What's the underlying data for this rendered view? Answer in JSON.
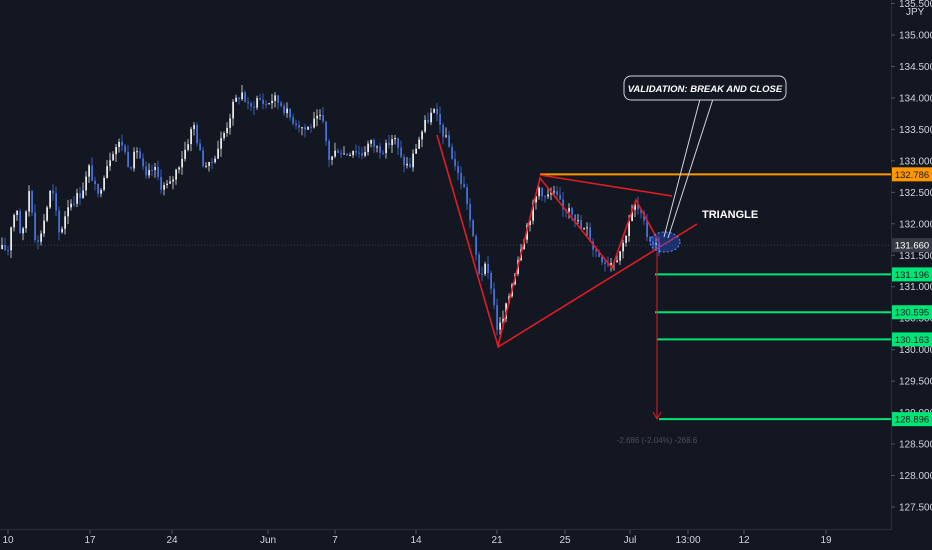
{
  "chart_data": {
    "type": "candlestick",
    "instrument_currency": "JPY",
    "y_axis": {
      "min": 127.25,
      "max": 135.5,
      "ticks": [
        "135.500",
        "135.000",
        "134.500",
        "134.000",
        "133.500",
        "133.000",
        "132.500",
        "132.000",
        "131.500",
        "131.000",
        "130.500",
        "130.000",
        "129.500",
        "129.000",
        "128.500",
        "128.000",
        "127.500"
      ]
    },
    "x_axis": {
      "ticks": [
        "10",
        "17",
        "24",
        "Jun",
        "7",
        "14",
        "21",
        "25",
        "Jul",
        "13:00",
        "12",
        "19"
      ]
    },
    "price_labels": [
      {
        "name": "resistance",
        "value": 132.786,
        "text": "132.786",
        "color": "#ff9800"
      },
      {
        "name": "current",
        "value": 131.66,
        "text": "131.660",
        "color": "#363a45"
      },
      {
        "name": "target-1",
        "value": 131.196,
        "text": "131.196",
        "color": "#00e676"
      },
      {
        "name": "target-2",
        "value": 130.595,
        "text": "130.595",
        "color": "#00e676"
      },
      {
        "name": "target-3",
        "value": 130.163,
        "text": "130.163",
        "color": "#00e676"
      },
      {
        "name": "target-4",
        "value": 128.896,
        "text": "128.896",
        "color": "#00e676"
      }
    ],
    "annotations": {
      "callout": "VALIDATION: BREAK AND CLOSE",
      "pattern_label": "TRIANGLE",
      "measure_label": "-2.686 (-2.04%) -268.6"
    },
    "colors": {
      "background": "#131722",
      "candle_up": "#ffffff",
      "candle_down": "#4c7cf3",
      "drawing": "#e31b23",
      "level_orange": "#ff9800",
      "level_green": "#00e676"
    },
    "price_path": [
      [
        10,
        131.9
      ],
      [
        17,
        132.3
      ],
      [
        22,
        131.7
      ],
      [
        30,
        132.6
      ],
      [
        37,
        131.6
      ],
      [
        45,
        132.1
      ],
      [
        52,
        132.6
      ],
      [
        60,
        131.8
      ],
      [
        68,
        132.3
      ],
      [
        75,
        132.4
      ],
      [
        82,
        132.5
      ],
      [
        90,
        132.9
      ],
      [
        98,
        132.4
      ],
      [
        106,
        132.9
      ],
      [
        114,
        133.2
      ],
      [
        122,
        133.3
      ],
      [
        130,
        132.9
      ],
      [
        138,
        133.2
      ],
      [
        146,
        132.7
      ],
      [
        154,
        132.9
      ],
      [
        162,
        132.6
      ],
      [
        170,
        132.6
      ],
      [
        178,
        132.9
      ],
      [
        186,
        133.2
      ],
      [
        194,
        133.6
      ],
      [
        202,
        133.0
      ],
      [
        210,
        132.9
      ],
      [
        218,
        133.2
      ],
      [
        226,
        133.5
      ],
      [
        234,
        133.9
      ],
      [
        242,
        134.1
      ],
      [
        250,
        133.8
      ],
      [
        258,
        134.0
      ],
      [
        266,
        133.9
      ],
      [
        274,
        134.0
      ],
      [
        282,
        133.9
      ],
      [
        290,
        133.7
      ],
      [
        298,
        133.6
      ],
      [
        306,
        133.5
      ],
      [
        314,
        133.6
      ],
      [
        322,
        133.7
      ],
      [
        330,
        133.0
      ],
      [
        338,
        133.2
      ],
      [
        346,
        133.1
      ],
      [
        354,
        133.2
      ],
      [
        362,
        133.1
      ],
      [
        370,
        133.3
      ],
      [
        378,
        133.2
      ],
      [
        386,
        133.2
      ],
      [
        394,
        133.4
      ],
      [
        402,
        133.0
      ],
      [
        410,
        132.9
      ],
      [
        418,
        133.3
      ],
      [
        426,
        133.6
      ],
      [
        434,
        133.8
      ],
      [
        442,
        133.5
      ],
      [
        450,
        133.2
      ],
      [
        458,
        132.8
      ],
      [
        466,
        132.5
      ],
      [
        474,
        131.7
      ],
      [
        480,
        131.2
      ],
      [
        486,
        131.3
      ],
      [
        492,
        131.0
      ],
      [
        498,
        130.3
      ],
      [
        504,
        130.5
      ],
      [
        510,
        130.9
      ],
      [
        516,
        131.3
      ],
      [
        522,
        131.7
      ],
      [
        528,
        132.0
      ],
      [
        534,
        132.3
      ],
      [
        540,
        132.6
      ],
      [
        546,
        132.4
      ],
      [
        552,
        132.5
      ],
      [
        558,
        132.4
      ],
      [
        564,
        132.2
      ],
      [
        570,
        132.3
      ],
      [
        576,
        132.1
      ],
      [
        582,
        131.9
      ],
      [
        588,
        131.9
      ],
      [
        594,
        131.6
      ],
      [
        600,
        131.5
      ],
      [
        606,
        131.4
      ],
      [
        612,
        131.4
      ],
      [
        618,
        131.5
      ],
      [
        624,
        131.7
      ],
      [
        630,
        132.1
      ],
      [
        636,
        132.3
      ],
      [
        642,
        132.1
      ],
      [
        648,
        131.8
      ],
      [
        654,
        131.7
      ],
      [
        660,
        131.6
      ]
    ]
  }
}
